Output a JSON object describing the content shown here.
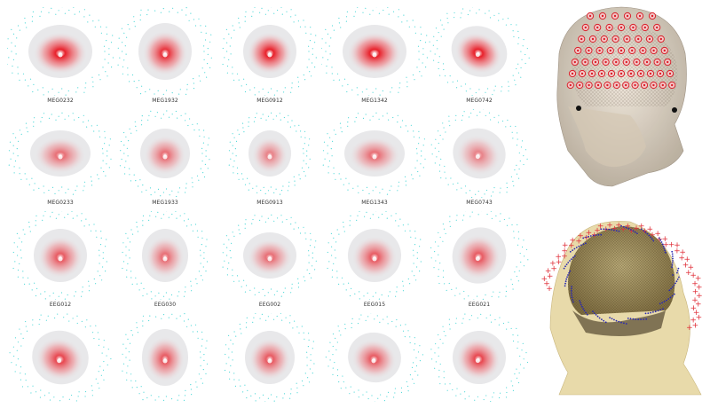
{
  "labels": [
    [
      "MEG0232",
      "MEG1932",
      "MEG0912",
      "MEG1342",
      "MEG0742"
    ],
    [
      "MEG0233",
      "MEG1933",
      "MEG0913",
      "MEG1343",
      "MEG0743"
    ],
    [
      "EEG012",
      "EEG030",
      "EEG002",
      "EEG015",
      "EEG021"
    ],
    [
      "",
      "",
      "",
      "",
      ""
    ]
  ],
  "colors": {
    "hotspot": "#e8202a",
    "sensor_dots": "#4fd8d8",
    "brain": "#e8e8ea",
    "head_skin": "#d9cfc0",
    "eeg_electrode": "#d9202a",
    "scalp_gold": "#d8c98a",
    "marker_plus": "#e0303a",
    "marker_dot": "#2a2ab0"
  },
  "icons": [
    "brain-projection-icon",
    "head-model-icon"
  ]
}
